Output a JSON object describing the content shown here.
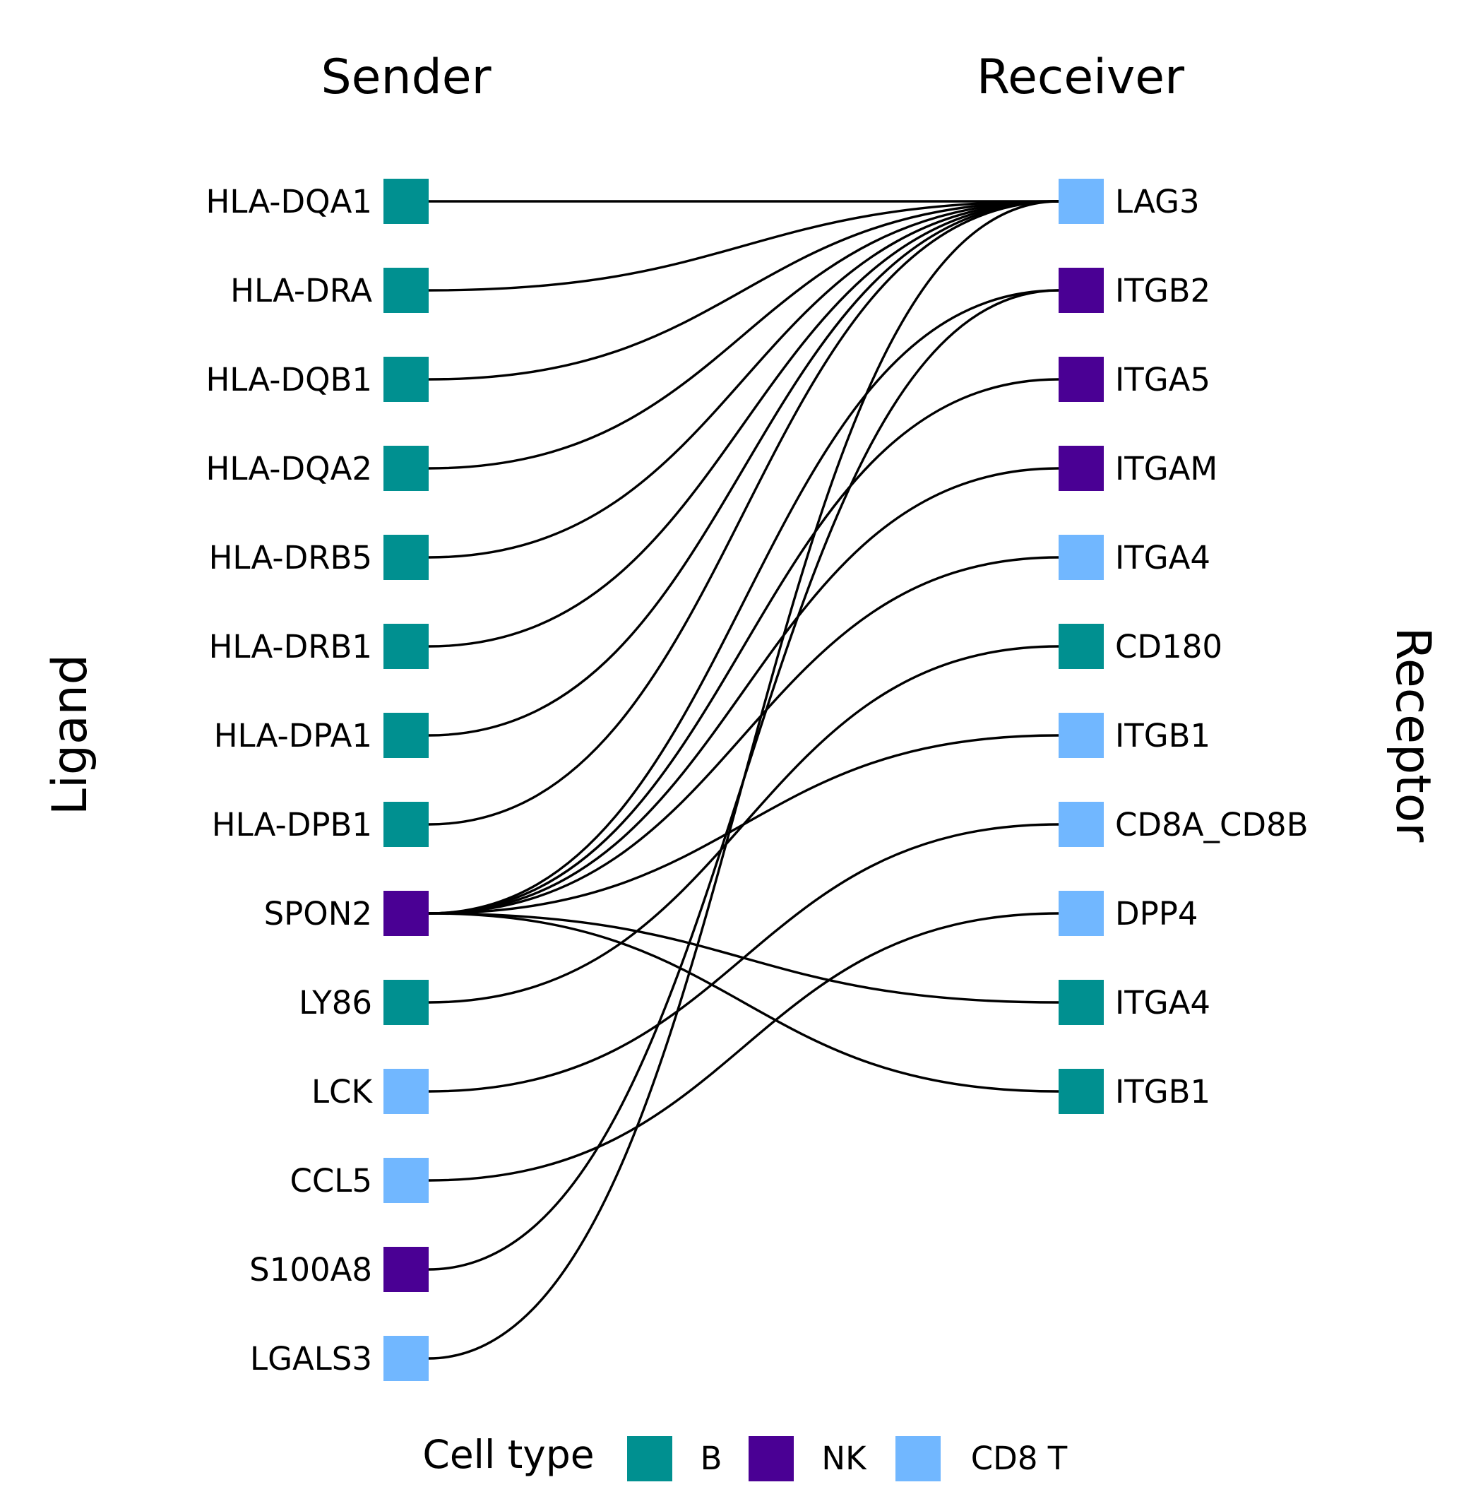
{
  "headers": {
    "sender": "Sender",
    "receiver": "Receiver"
  },
  "axis_titles": {
    "left": "Ligand",
    "right": "Receptor"
  },
  "cell_types": [
    {
      "name": "B",
      "color": "#009090"
    },
    {
      "name": "NK",
      "color": "#4a0094"
    },
    {
      "name": "CD8 T",
      "color": "#71b7ff"
    }
  ],
  "legend": {
    "title": "Cell type"
  },
  "ligands": [
    {
      "label": "HLA-DQA1",
      "cell_type": "B"
    },
    {
      "label": "HLA-DRA",
      "cell_type": "B"
    },
    {
      "label": "HLA-DQB1",
      "cell_type": "B"
    },
    {
      "label": "HLA-DQA2",
      "cell_type": "B"
    },
    {
      "label": "HLA-DRB5",
      "cell_type": "B"
    },
    {
      "label": "HLA-DRB1",
      "cell_type": "B"
    },
    {
      "label": "HLA-DPA1",
      "cell_type": "B"
    },
    {
      "label": "HLA-DPB1",
      "cell_type": "B"
    },
    {
      "label": "SPON2",
      "cell_type": "NK"
    },
    {
      "label": "LY86",
      "cell_type": "B"
    },
    {
      "label": "LCK",
      "cell_type": "CD8 T"
    },
    {
      "label": "CCL5",
      "cell_type": "CD8 T"
    },
    {
      "label": "S100A8",
      "cell_type": "NK"
    },
    {
      "label": "LGALS3",
      "cell_type": "CD8 T"
    }
  ],
  "receptors": [
    {
      "label": "LAG3",
      "cell_type": "CD8 T"
    },
    {
      "label": "ITGB2",
      "cell_type": "NK"
    },
    {
      "label": "ITGA5",
      "cell_type": "NK"
    },
    {
      "label": "ITGAM",
      "cell_type": "NK"
    },
    {
      "label": "ITGA4",
      "cell_type": "CD8 T"
    },
    {
      "label": "CD180",
      "cell_type": "B"
    },
    {
      "label": "ITGB1",
      "cell_type": "CD8 T"
    },
    {
      "label": "CD8A_CD8B",
      "cell_type": "CD8 T"
    },
    {
      "label": "DPP4",
      "cell_type": "CD8 T"
    },
    {
      "label": "ITGA4",
      "cell_type": "B"
    },
    {
      "label": "ITGB1",
      "cell_type": "B"
    }
  ],
  "links": [
    [
      0,
      0
    ],
    [
      1,
      0
    ],
    [
      2,
      0
    ],
    [
      3,
      0
    ],
    [
      4,
      0
    ],
    [
      5,
      0
    ],
    [
      6,
      0
    ],
    [
      7,
      0
    ],
    [
      8,
      1
    ],
    [
      8,
      2
    ],
    [
      8,
      3
    ],
    [
      8,
      4
    ],
    [
      8,
      6
    ],
    [
      8,
      9
    ],
    [
      8,
      10
    ],
    [
      9,
      5
    ],
    [
      10,
      7
    ],
    [
      11,
      8
    ],
    [
      12,
      1
    ],
    [
      13,
      0
    ]
  ]
}
